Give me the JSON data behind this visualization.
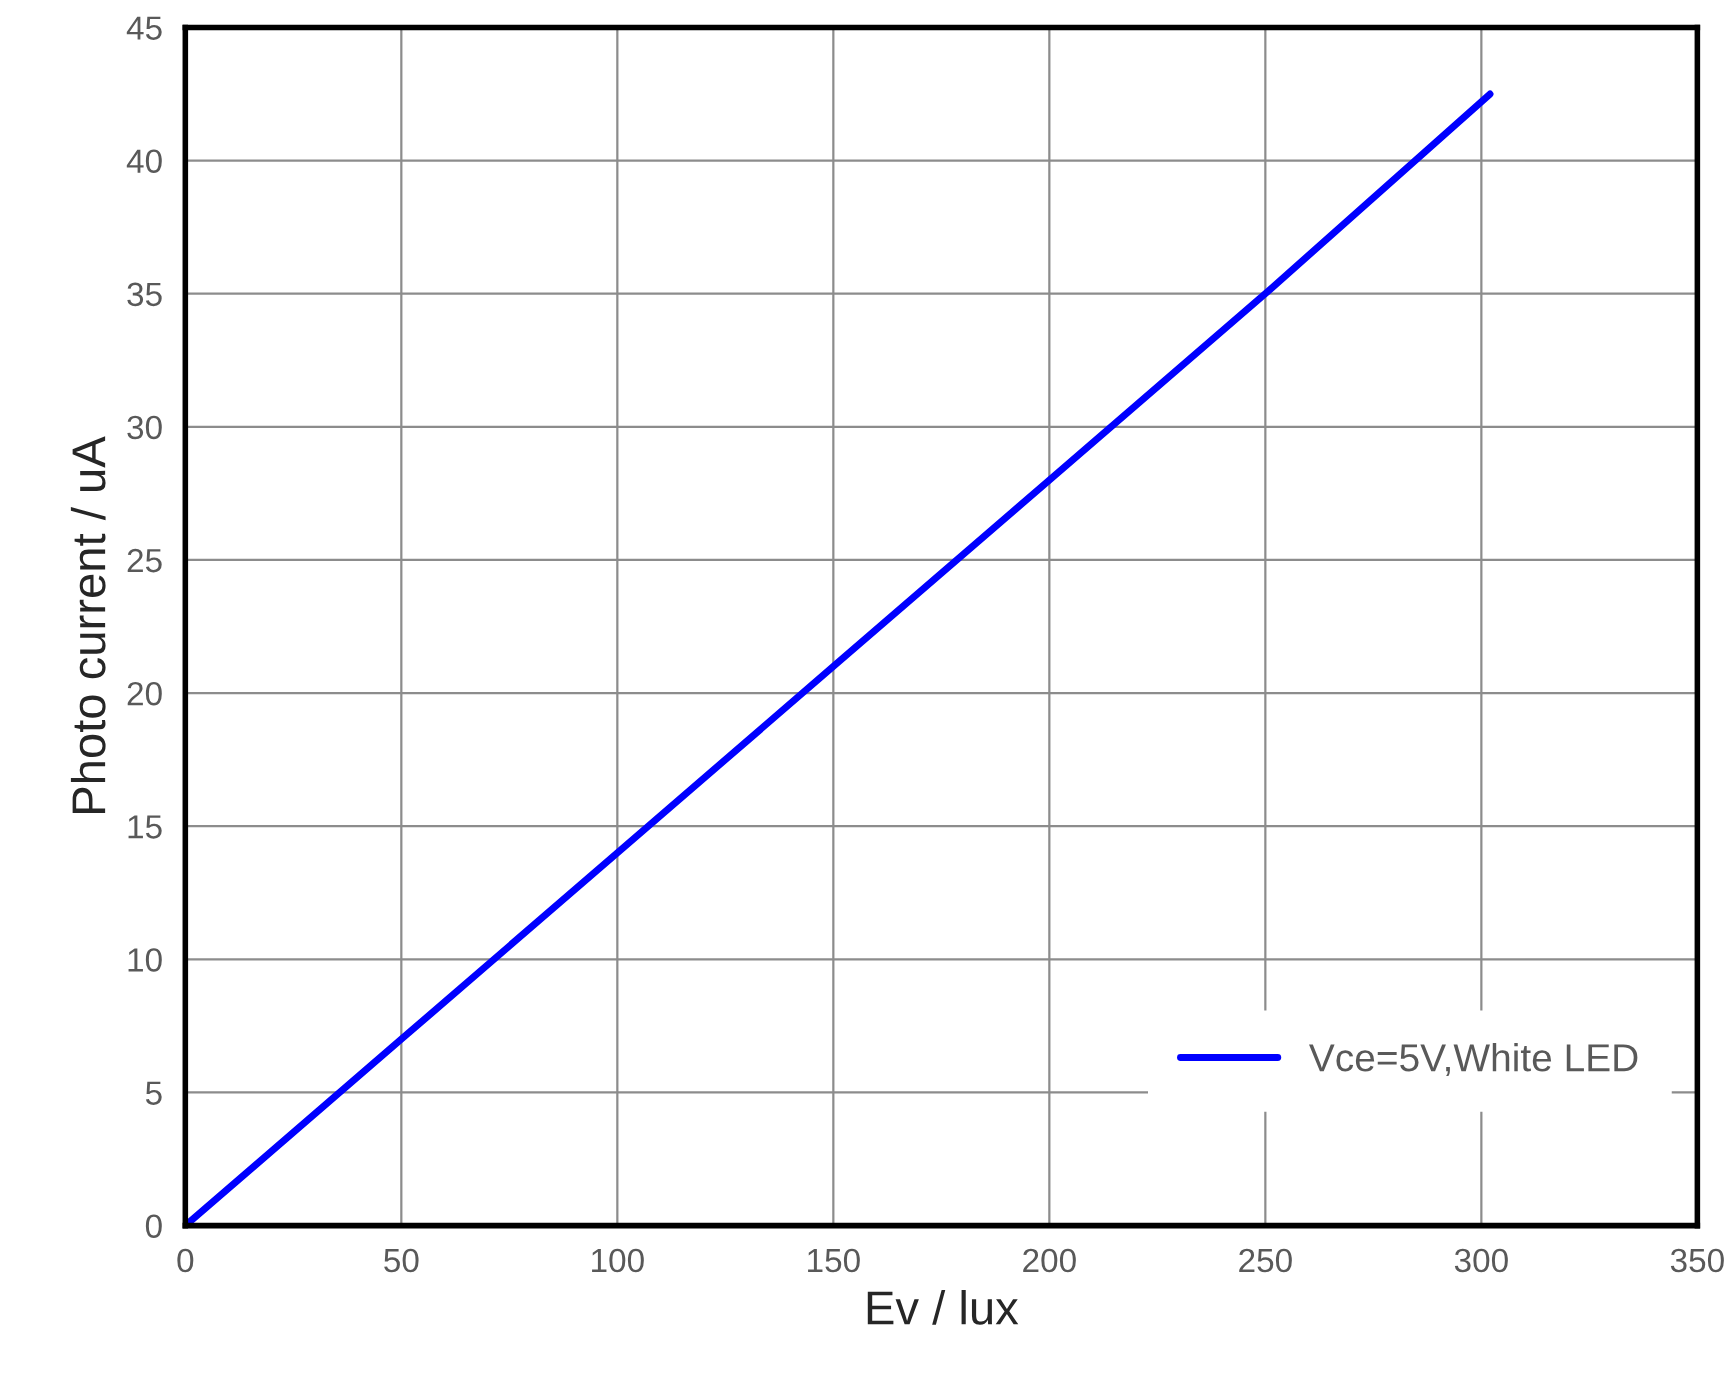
{
  "chart_data": {
    "type": "line",
    "xlabel": "Ev / lux",
    "ylabel": "Photo current / uA",
    "x": [
      0,
      50,
      100,
      150,
      200,
      250,
      302
    ],
    "series": [
      {
        "name": "Vce=5V,White LED",
        "color": "#0000ff",
        "values": [
          0,
          7,
          14,
          21,
          28,
          35,
          42.5
        ]
      }
    ],
    "xlim": [
      0,
      350
    ],
    "xticks": [
      0,
      50,
      100,
      150,
      200,
      250,
      300,
      350
    ],
    "ylim": [
      0,
      45
    ],
    "yticks": [
      0,
      5,
      10,
      15,
      20,
      25,
      30,
      35,
      40,
      45
    ],
    "grid": true,
    "legend": "bottom right",
    "marker": "none",
    "line_style": "solid"
  }
}
